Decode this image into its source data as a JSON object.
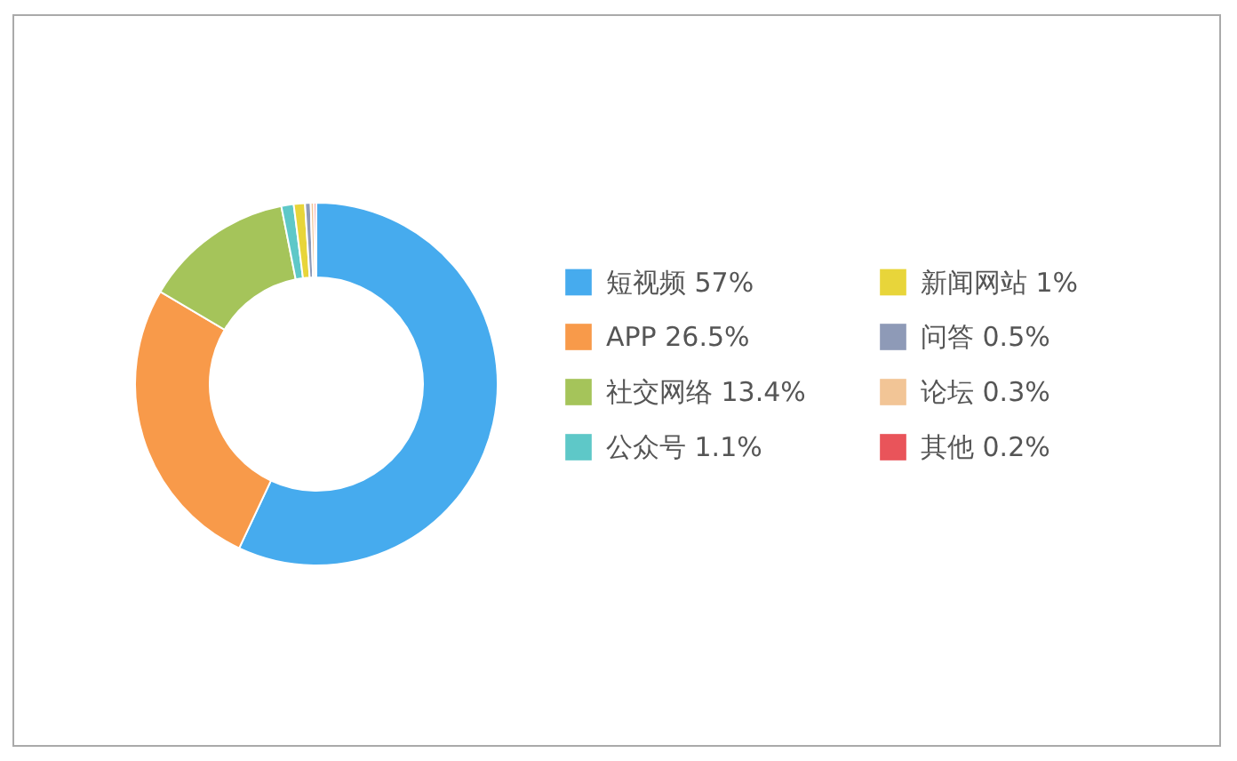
{
  "chart_data": {
    "type": "donut",
    "categories": [
      "短视频",
      "APP",
      "社交网络",
      "公众号",
      "新闻网站",
      "问答",
      "论坛",
      "其他"
    ],
    "values": [
      57,
      26.5,
      13.4,
      1.1,
      1,
      0.5,
      0.3,
      0.2
    ],
    "value_labels": [
      "57%",
      "26.5%",
      "13.4%",
      "1.1%",
      "1%",
      "0.5%",
      "0.3%",
      "0.2%"
    ],
    "colors": [
      "#46abee",
      "#f89a4a",
      "#a5c45a",
      "#5ec8c8",
      "#e8d53a",
      "#8e9ab7",
      "#f2c596",
      "#e9545a"
    ],
    "legend": "right"
  }
}
